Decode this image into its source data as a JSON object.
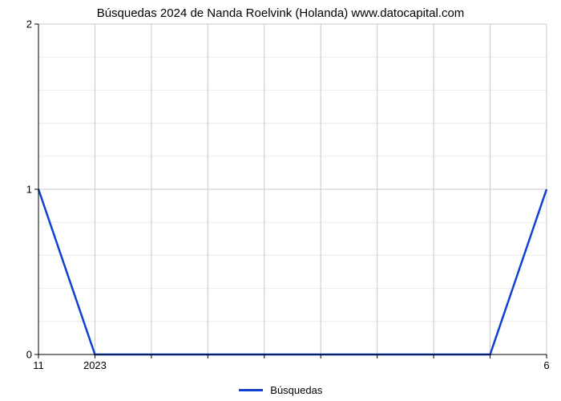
{
  "chart": {
    "type": "line",
    "title": "Búsquedas 2024 de Nanda Roelvink (Holanda) www.datocapital.com",
    "title_fontsize": 15,
    "title_color": "#000000",
    "background_color": "#ffffff",
    "plot_border": true,
    "series": {
      "label": "Búsquedas",
      "color": "#1040d0",
      "line_width": 2.5,
      "x": [
        0,
        1,
        2,
        3,
        4,
        5,
        6,
        7,
        8,
        9
      ],
      "y": [
        1,
        0,
        0,
        0,
        0,
        0,
        0,
        0,
        0,
        1
      ]
    },
    "x_axis": {
      "min": 0,
      "max": 9,
      "ticks": [
        0,
        1,
        2,
        3,
        4,
        5,
        6,
        7,
        8,
        9
      ],
      "tick_labels": [
        "11",
        "2023",
        "",
        "",
        "",
        "",
        "",
        "",
        "",
        "6"
      ],
      "label_fontsize": 13
    },
    "y_axis": {
      "min": 0,
      "max": 2,
      "ticks": [
        0,
        1,
        2
      ],
      "tick_labels": [
        "0",
        "1",
        "2"
      ],
      "minor_interval": 0.2,
      "label_fontsize": 13
    },
    "grid": {
      "major_color": "#c8c8c8",
      "minor_color": "#ebebeb",
      "major_width": 1,
      "minor_width": 1
    },
    "axis_color": "#000000",
    "tick_len": 5,
    "legend": {
      "position": "bottom-center",
      "label": "Búsquedas",
      "line_color": "#1040d0",
      "fontsize": 13
    }
  }
}
